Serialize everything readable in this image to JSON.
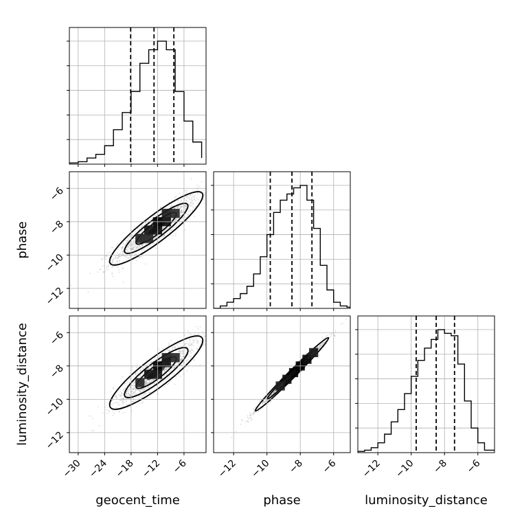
{
  "chart_data": {
    "type": "corner",
    "parameters": [
      {
        "name": "geocent_time",
        "label": "geocent_time",
        "range": [
          -32,
          -1
        ],
        "ticks": [
          -30,
          -24,
          -18,
          -12,
          -6
        ],
        "tick_labels": [
          "−30",
          "−24",
          "−18",
          "−12",
          "−6"
        ]
      },
      {
        "name": "phase",
        "label": "phase",
        "range": [
          -13.2,
          -5.0
        ],
        "ticks": [
          -12,
          -10,
          -8,
          -6
        ],
        "tick_labels": [
          "−12",
          "−10",
          "−8",
          "−6"
        ]
      },
      {
        "name": "luminosity_distance",
        "label": "luminosity_distance",
        "range": [
          -13.2,
          -5.0
        ],
        "ticks": [
          -12,
          -10,
          -8,
          -6
        ],
        "tick_labels": [
          "−12",
          "−10",
          "−8",
          "−6"
        ]
      }
    ],
    "histograms": [
      {
        "parameter": "geocent_time",
        "quantiles": [
          -18.1,
          -12.8,
          -8.3
        ],
        "bin_edges": [
          -32,
          -30,
          -28,
          -26,
          -24,
          -22,
          -20,
          -18,
          -16,
          -14,
          -12,
          -10,
          -8,
          -6,
          -4,
          -2
        ],
        "counts": [
          0.01,
          0.02,
          0.05,
          0.08,
          0.15,
          0.28,
          0.42,
          0.59,
          0.82,
          0.93,
          1.0,
          0.93,
          0.59,
          0.35,
          0.18,
          0.05
        ]
      },
      {
        "parameter": "phase",
        "quantiles": [
          -9.8,
          -8.5,
          -7.3
        ],
        "bin_edges": [
          -13.2,
          -12.8,
          -12.4,
          -12.0,
          -11.6,
          -11.2,
          -10.8,
          -10.4,
          -10.0,
          -9.6,
          -9.2,
          -8.8,
          -8.4,
          -8.0,
          -7.6,
          -7.2,
          -6.8,
          -6.4,
          -6.0,
          -5.6,
          -5.2,
          -5.0
        ],
        "counts": [
          0.0,
          0.02,
          0.05,
          0.08,
          0.12,
          0.18,
          0.28,
          0.42,
          0.6,
          0.78,
          0.88,
          0.93,
          0.98,
          1.0,
          0.88,
          0.65,
          0.35,
          0.15,
          0.05,
          0.02,
          0.01
        ]
      },
      {
        "parameter": "luminosity_distance",
        "quantiles": [
          -9.7,
          -8.5,
          -7.4
        ],
        "bin_edges": [
          -13.2,
          -12.8,
          -12.4,
          -12.0,
          -11.6,
          -11.2,
          -10.8,
          -10.4,
          -10.0,
          -9.6,
          -9.2,
          -8.8,
          -8.4,
          -8.0,
          -7.6,
          -7.2,
          -6.8,
          -6.4,
          -6.0,
          -5.6,
          -5.2,
          -5.0
        ],
        "counts": [
          0.01,
          0.02,
          0.04,
          0.08,
          0.15,
          0.25,
          0.35,
          0.48,
          0.62,
          0.75,
          0.85,
          0.92,
          1.0,
          0.97,
          0.95,
          0.72,
          0.42,
          0.2,
          0.08,
          0.02,
          0.02
        ]
      }
    ],
    "pairs": [
      {
        "x": "geocent_time",
        "y": "phase",
        "center": [
          -12.3,
          -8.4
        ],
        "sd": [
          4.8,
          1.0
        ],
        "corr": 0.9,
        "hot_bins": [
          [
            -12,
            -8,
            1.0
          ],
          [
            -10,
            -8,
            0.85
          ],
          [
            -14,
            -8.5,
            0.75
          ],
          [
            -12,
            -8.5,
            0.8
          ],
          [
            -10,
            -7.5,
            0.6
          ],
          [
            -16,
            -9,
            0.55
          ],
          [
            -8,
            -7.5,
            0.45
          ],
          [
            -14,
            -9,
            0.5
          ]
        ]
      },
      {
        "x": "geocent_time",
        "y": "luminosity_distance",
        "center": [
          -12.3,
          -8.4
        ],
        "sd": [
          4.8,
          1.0
        ],
        "corr": 0.88,
        "hot_bins": [
          [
            -12,
            -8,
            1.0
          ],
          [
            -10,
            -7.8,
            0.85
          ],
          [
            -14,
            -8.5,
            0.75
          ],
          [
            -12,
            -8.5,
            0.7
          ],
          [
            -10,
            -7.5,
            0.6
          ],
          [
            -16,
            -9,
            0.5
          ],
          [
            -8,
            -7.5,
            0.45
          ]
        ]
      },
      {
        "x": "phase",
        "y": "luminosity_distance",
        "center": [
          -8.5,
          -8.5
        ],
        "sd": [
          1.0,
          1.0
        ],
        "corr": 0.99,
        "hot_bins": [
          [
            -8,
            -8,
            1.0
          ],
          [
            -8.4,
            -8.4,
            0.9
          ],
          [
            -7.6,
            -7.6,
            0.8
          ],
          [
            -8.8,
            -8.8,
            0.75
          ],
          [
            -7.2,
            -7.2,
            0.6
          ],
          [
            -9.2,
            -9.2,
            0.55
          ]
        ]
      }
    ],
    "grid": true
  }
}
